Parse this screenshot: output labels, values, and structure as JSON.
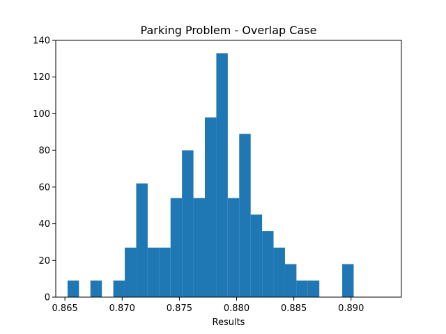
{
  "chart_data": {
    "type": "bar",
    "title": "Parking Problem - Overlap Case",
    "xlabel": "Results",
    "ylabel": "",
    "xlim": [
      0.8642,
      0.8944
    ],
    "ylim": [
      0,
      140
    ],
    "xticks": [
      0.865,
      0.87,
      0.875,
      0.88,
      0.885,
      0.89
    ],
    "xtick_labels": [
      "0.865",
      "0.870",
      "0.875",
      "0.880",
      "0.885",
      "0.890"
    ],
    "yticks": [
      0,
      20,
      40,
      60,
      80,
      100,
      120,
      140
    ],
    "ytick_labels": [
      "0",
      "20",
      "40",
      "60",
      "80",
      "100",
      "120",
      "140"
    ],
    "grid": false,
    "legend": false,
    "bar_color": "#1f77b4",
    "bins": [
      {
        "x0": 0.86523,
        "x1": 0.86623,
        "value": 9
      },
      {
        "x0": 0.86623,
        "x1": 0.86723,
        "value": 0
      },
      {
        "x0": 0.86723,
        "x1": 0.86823,
        "value": 9
      },
      {
        "x0": 0.86823,
        "x1": 0.86923,
        "value": 0
      },
      {
        "x0": 0.86923,
        "x1": 0.87023,
        "value": 9
      },
      {
        "x0": 0.87023,
        "x1": 0.87123,
        "value": 27
      },
      {
        "x0": 0.87123,
        "x1": 0.87223,
        "value": 62
      },
      {
        "x0": 0.87223,
        "x1": 0.87323,
        "value": 27
      },
      {
        "x0": 0.87323,
        "x1": 0.87423,
        "value": 27
      },
      {
        "x0": 0.87423,
        "x1": 0.87523,
        "value": 54
      },
      {
        "x0": 0.87523,
        "x1": 0.87623,
        "value": 80
      },
      {
        "x0": 0.87623,
        "x1": 0.87723,
        "value": 54
      },
      {
        "x0": 0.87723,
        "x1": 0.87823,
        "value": 98
      },
      {
        "x0": 0.87823,
        "x1": 0.87923,
        "value": 133
      },
      {
        "x0": 0.87923,
        "x1": 0.88023,
        "value": 54
      },
      {
        "x0": 0.88023,
        "x1": 0.88123,
        "value": 89
      },
      {
        "x0": 0.88123,
        "x1": 0.88223,
        "value": 45
      },
      {
        "x0": 0.88223,
        "x1": 0.88323,
        "value": 36
      },
      {
        "x0": 0.88323,
        "x1": 0.88423,
        "value": 27
      },
      {
        "x0": 0.88423,
        "x1": 0.88523,
        "value": 18
      },
      {
        "x0": 0.88523,
        "x1": 0.88623,
        "value": 9
      },
      {
        "x0": 0.88623,
        "x1": 0.88723,
        "value": 9
      },
      {
        "x0": 0.88723,
        "x1": 0.88823,
        "value": 0
      },
      {
        "x0": 0.88823,
        "x1": 0.88923,
        "value": 0
      },
      {
        "x0": 0.88923,
        "x1": 0.89023,
        "value": 18
      }
    ]
  }
}
